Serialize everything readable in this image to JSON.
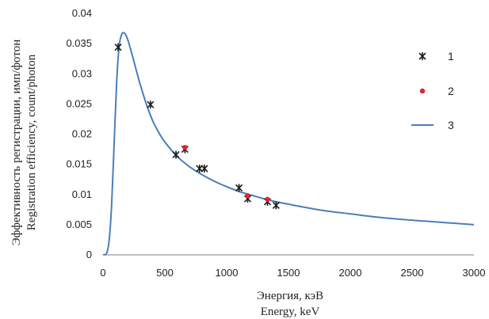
{
  "chart_data": {
    "type": "scatter",
    "title": "",
    "xlabel": [
      "Энергия, кэВ",
      "Energy, keV"
    ],
    "ylabel": [
      "Эффективность регистрации, имп/фотон",
      "Registration efficiency, count/photon"
    ],
    "xlim": [
      0,
      3000
    ],
    "ylim": [
      0,
      0.04
    ],
    "xticks": [
      "0",
      "500",
      "1000",
      "1500",
      "2000",
      "2500",
      "3000"
    ],
    "yticks": [
      "0",
      "0.005",
      "0.01",
      "0.015",
      "0.02",
      "0.025",
      "0.03",
      "0.035",
      "0.04"
    ],
    "grid": false,
    "legend_position": "right",
    "series": [
      {
        "name": "1",
        "kind": "scatter",
        "marker": "asterisk",
        "color": "#1a1a1a",
        "x": [
          122,
          384,
          590,
          662,
          780,
          820,
          1100,
          1170,
          1330,
          1400
        ],
        "y": [
          0.0344,
          0.0249,
          0.0166,
          0.0175,
          0.0143,
          0.0143,
          0.0111,
          0.0093,
          0.0088,
          0.0082
        ]
      },
      {
        "name": "2",
        "kind": "scatter",
        "marker": "circle",
        "color": "#e8202a",
        "x": [
          662,
          1170,
          1330
        ],
        "y": [
          0.0178,
          0.0098,
          0.0092
        ]
      },
      {
        "name": "3",
        "kind": "line",
        "color": "#4a7ebb",
        "x": [
          0,
          30,
          50,
          70,
          90,
          110,
          130,
          150,
          170,
          190,
          210,
          240,
          270,
          300,
          350,
          400,
          450,
          500,
          600,
          700,
          800,
          900,
          1000,
          1100,
          1200,
          1300,
          1400,
          1500,
          1600,
          1800,
          2000,
          2200,
          2400,
          2600,
          2800,
          3000
        ],
        "y": [
          0,
          0.0003,
          0.0025,
          0.0085,
          0.0185,
          0.0285,
          0.0345,
          0.0365,
          0.0368,
          0.0362,
          0.035,
          0.0328,
          0.0305,
          0.0283,
          0.025,
          0.0223,
          0.0203,
          0.0187,
          0.0163,
          0.0146,
          0.0133,
          0.0122,
          0.0113,
          0.0105,
          0.0099,
          0.0093,
          0.0088,
          0.0084,
          0.008,
          0.0073,
          0.0068,
          0.0063,
          0.0059,
          0.0056,
          0.0053,
          0.005
        ]
      }
    ]
  }
}
